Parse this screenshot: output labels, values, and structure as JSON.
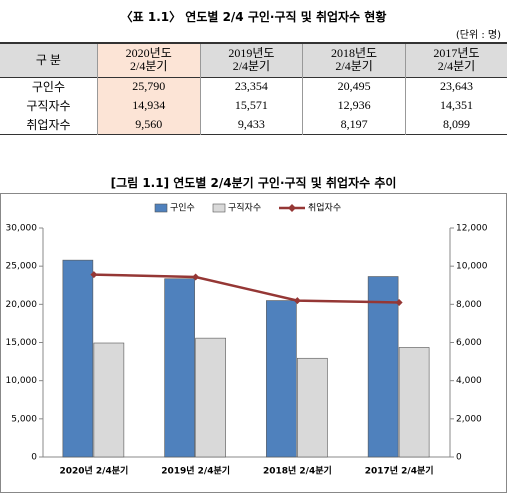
{
  "table_title": "〈표 1.1〉 연도별 2/4 구인·구직 및 취업자수 현황",
  "unit": "(단위 : 명)",
  "table": {
    "header": [
      [
        "구 분"
      ],
      [
        "2020년도",
        "2/4분기"
      ],
      [
        "2019년도",
        "2/4분기"
      ],
      [
        "2018년도",
        "2/4분기"
      ],
      [
        "2017년도",
        "2/4분기"
      ]
    ],
    "rows": [
      [
        "구인수",
        "25,790",
        "23,354",
        "20,495",
        "23,643"
      ],
      [
        "구직자수",
        "14,934",
        "15,571",
        "12,936",
        "14,351"
      ],
      [
        "취업자수",
        "9,560",
        "9,433",
        "8,197",
        "8,099"
      ]
    ]
  },
  "chart_data": {
    "type": "bar",
    "title": "[그림 1.1]  연도별 2/4분기 구인·구직 및 취업자수 추이",
    "categories": [
      "2020년 2/4분기",
      "2019년 2/4분기",
      "2018년 2/4분기",
      "2017년 2/4분기"
    ],
    "series": [
      {
        "name": "구인수",
        "color": "#4f81bd",
        "values": [
          25790,
          23354,
          20495,
          23643
        ]
      },
      {
        "name": "구직자수",
        "color": "#d9d9d9",
        "values": [
          14934,
          15571,
          12936,
          14351
        ]
      },
      {
        "name": "취업자수",
        "color": "#953735",
        "type": "line",
        "axis": "y2",
        "values": [
          9560,
          9433,
          8197,
          8099
        ]
      }
    ],
    "ylim": [
      0,
      30000
    ],
    "yticks": [
      0,
      {
        "value": 5000,
        "label": "5,000"
      },
      {
        "value": 10000,
        "label": "10,000"
      },
      {
        "value": 15000,
        "label": "15,000"
      },
      {
        "value": 20000,
        "label": "20,000"
      },
      {
        "value": 25000,
        "label": "25,000"
      },
      {
        "value": 30000,
        "label": "30,000"
      }
    ],
    "y2lim": [
      0,
      12000
    ],
    "y2ticks": [
      0,
      {
        "value": 2000,
        "label": "2,000"
      },
      {
        "value": 4000,
        "label": "4,000"
      },
      {
        "value": 6000,
        "label": "6,000"
      },
      {
        "value": 8000,
        "label": "8,000"
      },
      {
        "value": 10000,
        "label": "10,000"
      },
      {
        "value": 12000,
        "label": "12,000"
      }
    ],
    "grid": false,
    "legend": "top"
  }
}
